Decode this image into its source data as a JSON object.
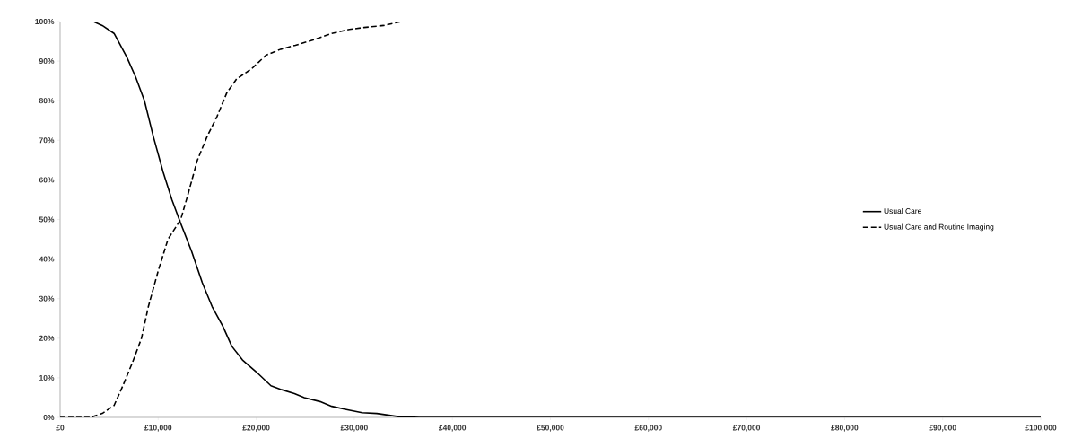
{
  "chart_data": {
    "type": "line",
    "xlim": [
      0,
      100000
    ],
    "ylim": [
      0,
      100
    ],
    "xticks": [
      {
        "value": 0,
        "label": "£0"
      },
      {
        "value": 10000,
        "label": "£10,000"
      },
      {
        "value": 20000,
        "label": "£20,000"
      },
      {
        "value": 30000,
        "label": "£30,000"
      },
      {
        "value": 40000,
        "label": "£40,000"
      },
      {
        "value": 50000,
        "label": "£50,000"
      },
      {
        "value": 60000,
        "label": "£60,000"
      },
      {
        "value": 70000,
        "label": "£70,000"
      },
      {
        "value": 80000,
        "label": "£80,000"
      },
      {
        "value": 90000,
        "label": "£90,000"
      },
      {
        "value": 100000,
        "label": "£100,000"
      }
    ],
    "yticks": [
      {
        "value": 0,
        "label": "0%"
      },
      {
        "value": 10,
        "label": "10%"
      },
      {
        "value": 20,
        "label": "20%"
      },
      {
        "value": 30,
        "label": "30%"
      },
      {
        "value": 40,
        "label": "40%"
      },
      {
        "value": 50,
        "label": "50%"
      },
      {
        "value": 60,
        "label": "60%"
      },
      {
        "value": 70,
        "label": "70%"
      },
      {
        "value": 80,
        "label": "80%"
      },
      {
        "value": 90,
        "label": "90%"
      },
      {
        "value": 100,
        "label": "100%"
      }
    ],
    "grid": false,
    "legend": "right",
    "marker": "none",
    "series": [
      {
        "name": "Usual Care",
        "color": "#000000",
        "line_style": "solid",
        "x": [
          0,
          3400,
          4300,
          5500,
          6800,
          7700,
          8600,
          9500,
          10500,
          11400,
          12300,
          13400,
          14500,
          15500,
          16600,
          17500,
          18600,
          20000,
          21500,
          22600,
          23900,
          24900,
          26500,
          27700,
          29200,
          30800,
          32300,
          34500,
          36600,
          100000
        ],
        "values": [
          100,
          100,
          99,
          97,
          91,
          86,
          80,
          71,
          62,
          55,
          49,
          42,
          34,
          28,
          23,
          18,
          14.5,
          11.5,
          8,
          7,
          6,
          5,
          4,
          2.8,
          2,
          1.2,
          1,
          0.2,
          0,
          0
        ]
      },
      {
        "name": "Usual Care and Routine Imaging",
        "color": "#000000",
        "line_style": "dashed",
        "x": [
          0,
          3100,
          4300,
          5500,
          6400,
          7400,
          8300,
          9000,
          10000,
          11000,
          12300,
          13000,
          14000,
          15000,
          16000,
          17000,
          18000,
          19500,
          21000,
          22500,
          24000,
          26000,
          27700,
          29500,
          31000,
          33000,
          34800,
          100000
        ],
        "values": [
          0,
          0,
          1,
          3,
          8,
          14,
          20,
          28,
          37,
          45,
          50,
          56,
          65,
          71,
          76,
          82,
          85.5,
          88,
          91.5,
          93,
          94,
          95.5,
          97,
          98,
          98.5,
          99,
          100,
          100
        ]
      }
    ]
  }
}
